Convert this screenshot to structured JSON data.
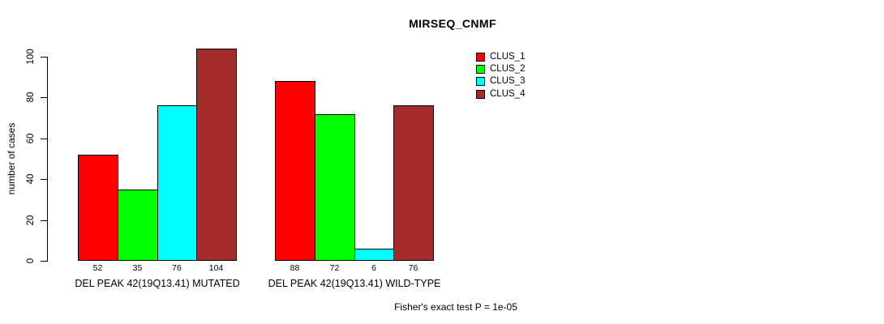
{
  "chart_data": {
    "type": "bar",
    "title": "MIRSEQ_CNMF",
    "ylabel": "number of cases",
    "xlabel": "",
    "y_ticks": [
      0,
      20,
      40,
      60,
      80,
      100
    ],
    "ylim": [
      0,
      104
    ],
    "grid": false,
    "legend_position": "top-right",
    "series": [
      {
        "name": "CLUS_1",
        "color": "#ff0000"
      },
      {
        "name": "CLUS_2",
        "color": "#00ff00"
      },
      {
        "name": "CLUS_3",
        "color": "#00ffff"
      },
      {
        "name": "CLUS_4",
        "color": "#a52a2a"
      }
    ],
    "groups": [
      {
        "label": "DEL PEAK 42(19Q13.41) MUTATED",
        "values": [
          52,
          35,
          76,
          104
        ]
      },
      {
        "label": "DEL PEAK 42(19Q13.41) WILD-TYPE",
        "values": [
          88,
          72,
          6,
          76
        ]
      }
    ],
    "annotation": "Fisher's exact test P = 1e-05",
    "colors": {
      "background": "#ffffff",
      "axis": "#000000",
      "bar_border": "#000000"
    }
  }
}
